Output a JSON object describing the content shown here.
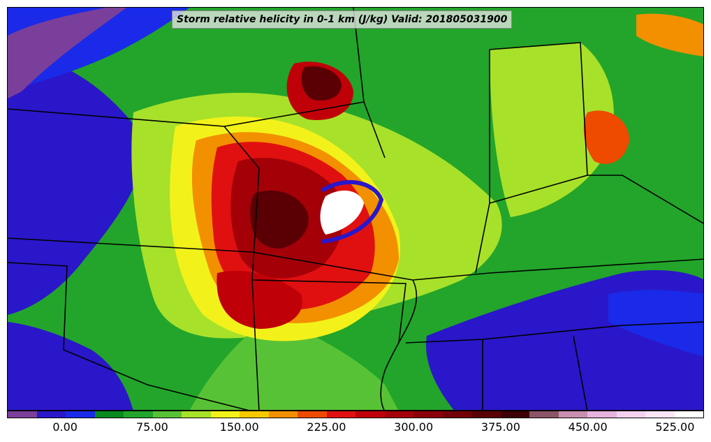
{
  "title": "Storm relative helicity in 0-1 km (J/kg) Valid: 201805031900",
  "colorbar": {
    "colors": [
      "#7a3f9a",
      "#2a17c9",
      "#1a2ae8",
      "#0a8a1e",
      "#22a52a",
      "#58c236",
      "#a8e12a",
      "#f2f21a",
      "#f5c800",
      "#f29000",
      "#ee4a00",
      "#e01010",
      "#c00008",
      "#a40008",
      "#8a0006",
      "#720006",
      "#5a0004",
      "#3e0004",
      "#8a5566",
      "#c88fb0",
      "#e6b3dd",
      "#f4d2ef",
      "#fae6f7",
      "#ffffff"
    ],
    "ticks": [
      "0.00",
      "75.00",
      "150.00",
      "225.00",
      "300.00",
      "375.00",
      "450.00",
      "525.00"
    ]
  },
  "legend": {
    "variable": "Storm relative helicity in 0-1 km",
    "units": "J/kg",
    "valid_time": "201805031900"
  },
  "colors": {
    "background_low": "#2a17c9",
    "moderate": "#22a52a",
    "high": "#e01010",
    "extreme": "#5a0004",
    "borders": "#000000"
  }
}
